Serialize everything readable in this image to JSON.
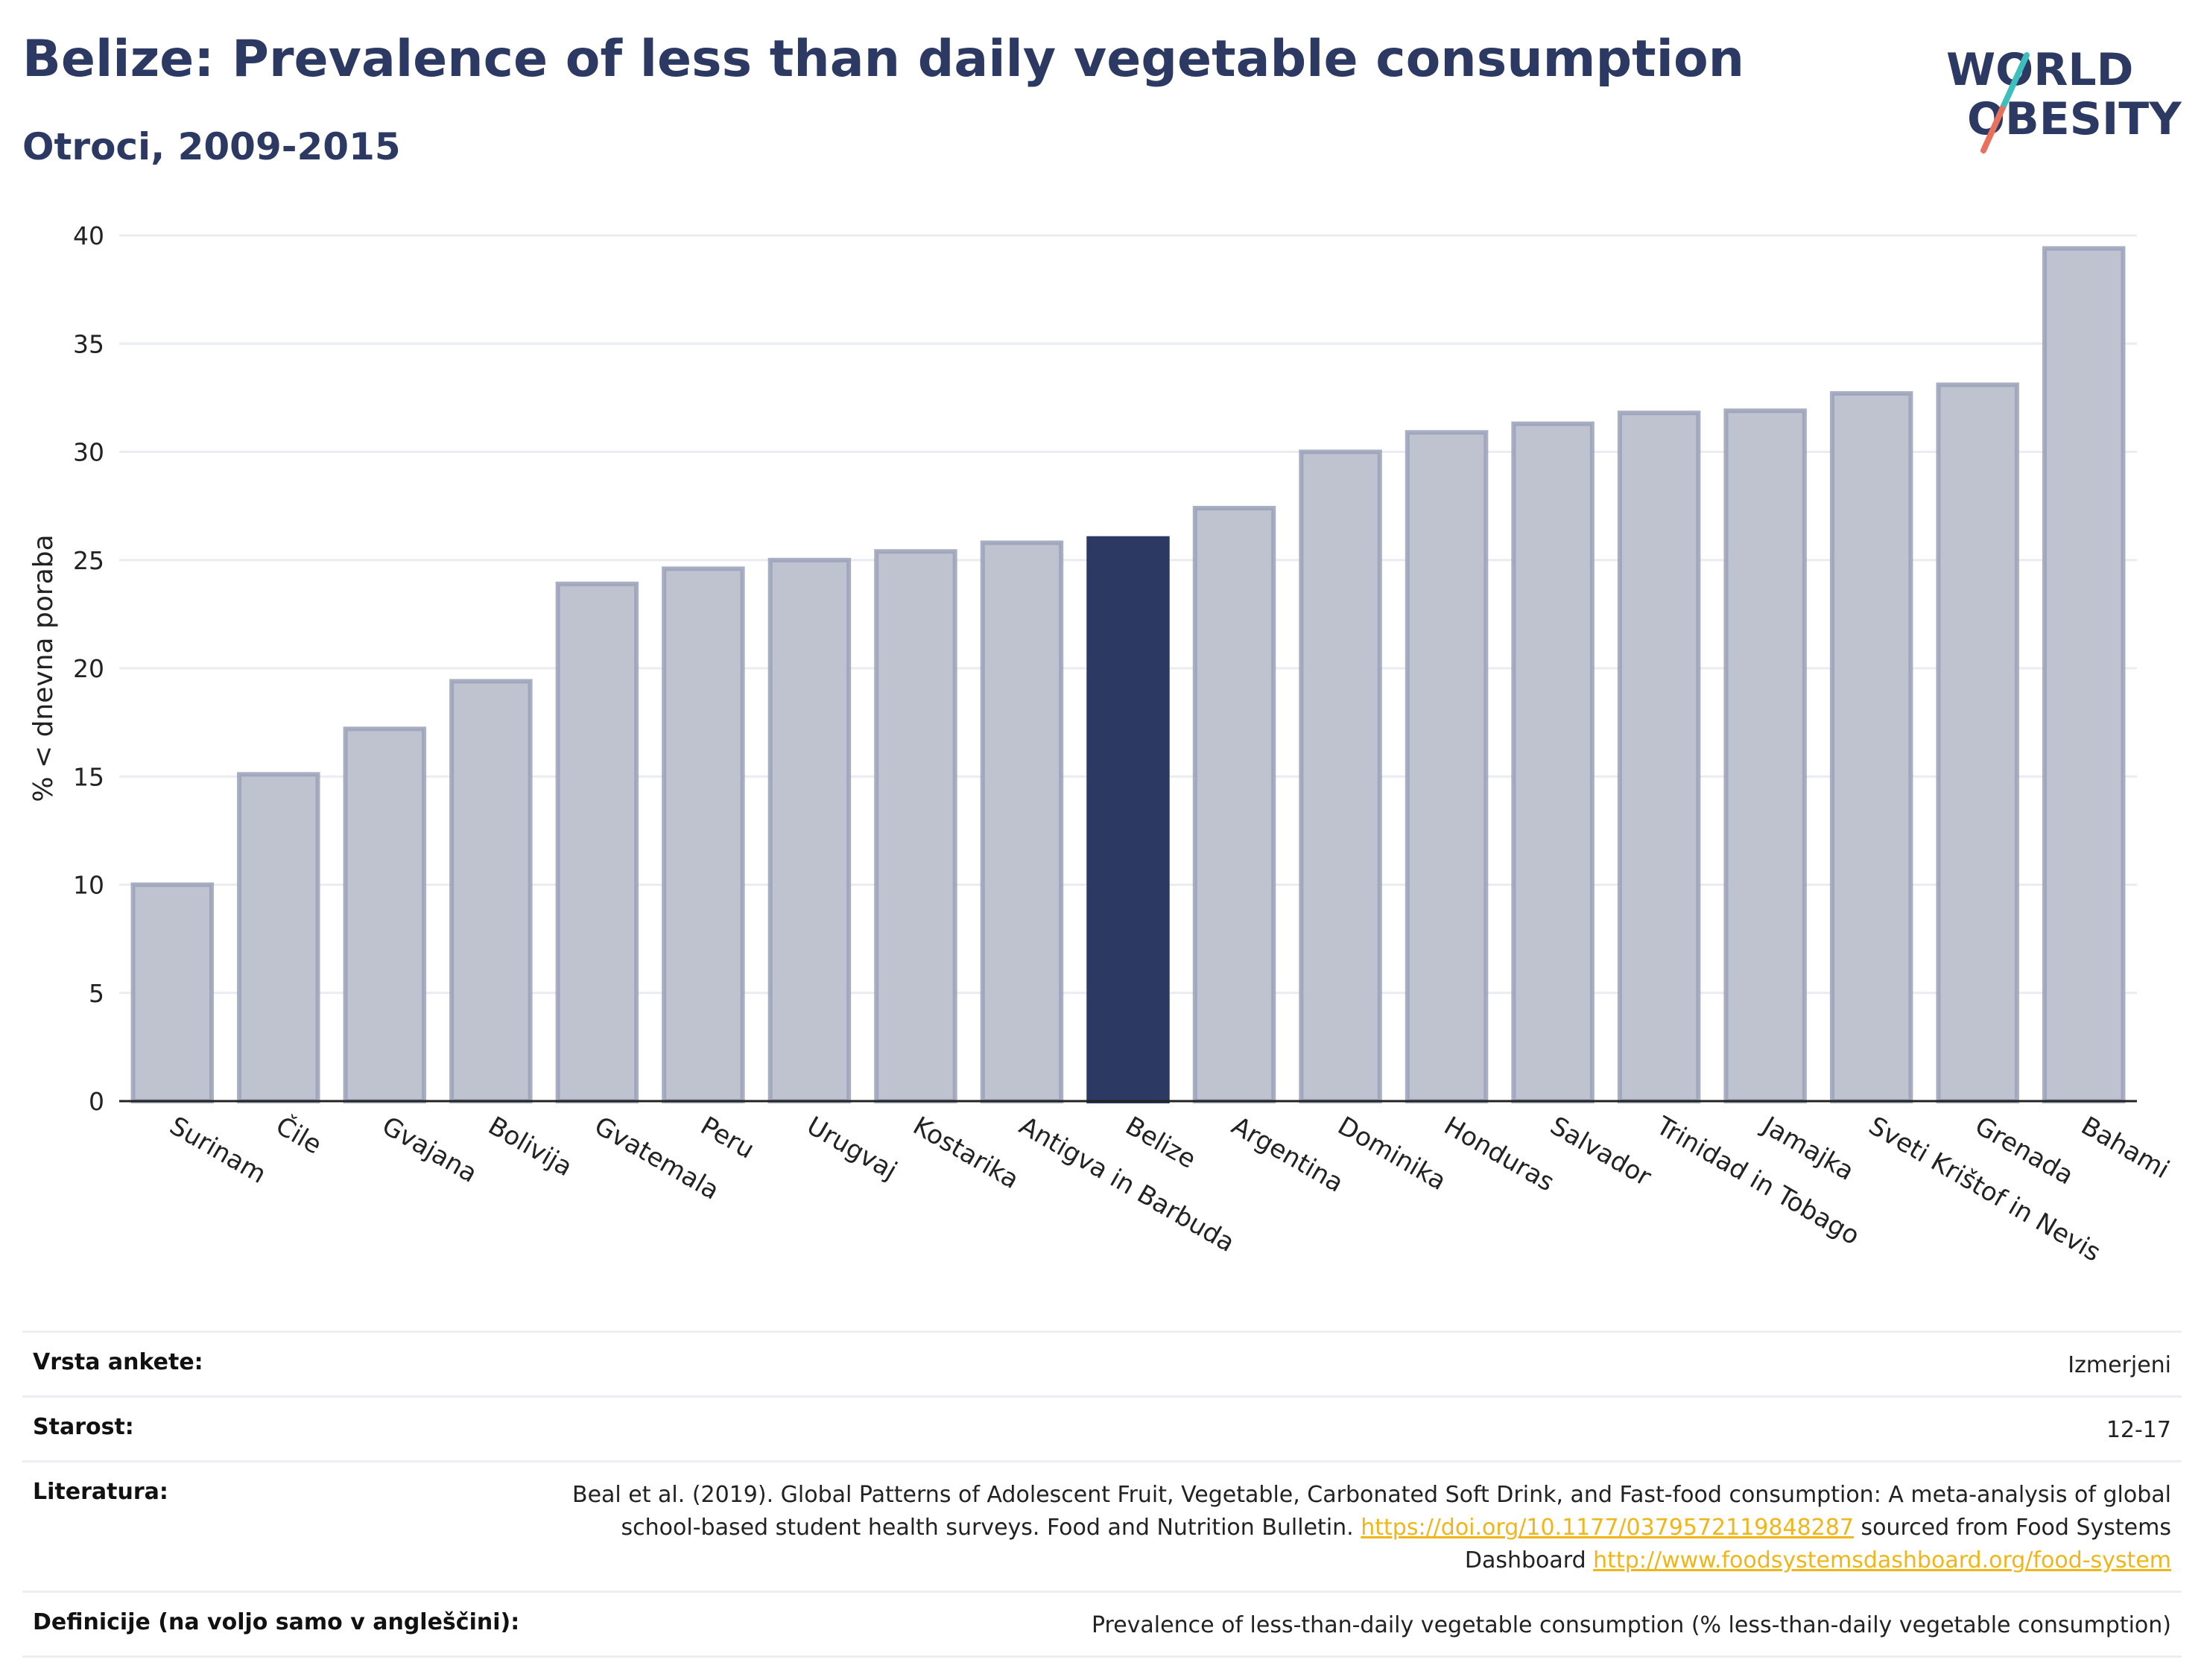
{
  "header": {
    "title": "Belize: Prevalence of less than daily vegetable consumption",
    "subtitle": "Otroci, 2009-2015"
  },
  "logo": {
    "line1": "WORLD",
    "line2": "OBESITY"
  },
  "colors": {
    "bar": "#bfc3d0",
    "bar_border": "#9aa1b8",
    "highlight": "#2c3963",
    "title": "#2c3963",
    "link": "#f0b619"
  },
  "chart_data": {
    "type": "bar",
    "title": "Belize: Prevalence of less than daily vegetable consumption",
    "subtitle": "Otroci, 2009-2015",
    "xlabel": "",
    "ylabel": "% < dnevna poraba",
    "ylim": [
      0,
      40
    ],
    "yticks": [
      0,
      5,
      10,
      15,
      20,
      25,
      30,
      35,
      40
    ],
    "grid": true,
    "highlight": "Belize",
    "categories": [
      "Surinam",
      "Čile",
      "Gvajana",
      "Bolivija",
      "Gvatemala",
      "Peru",
      "Urugvaj",
      "Kostarika",
      "Antigva in Barbuda",
      "Belize",
      "Argentina",
      "Dominika",
      "Honduras",
      "Salvador",
      "Trinidad in Tobago",
      "Jamajka",
      "Sveti Krištof in Nevis",
      "Grenada",
      "Bahami"
    ],
    "values": [
      10.0,
      15.1,
      17.2,
      19.4,
      23.9,
      24.6,
      25.0,
      25.4,
      25.8,
      26.0,
      27.4,
      30.0,
      30.9,
      31.3,
      31.8,
      31.9,
      32.7,
      33.1,
      39.4
    ]
  },
  "meta": {
    "survey_label": "Vrsta ankete:",
    "survey_value": "Izmerjeni",
    "age_label": "Starost:",
    "age_value": "12-17",
    "ref_label": "Literatura:",
    "ref_text1": "Beal et al. (2019). Global Patterns of Adolescent Fruit, Vegetable, Carbonated Soft Drink, and Fast-food consumption: A meta-analysis of global school-based student health surveys. Food and Nutrition Bulletin. ",
    "ref_link1": "https://doi.org/10.1177/0379572119848287",
    "ref_text2": " sourced from Food Systems Dashboard ",
    "ref_link2": "http://www.foodsystemsdashboard.org/food-system",
    "def_label": "Definicije (na voljo samo v angleščini):",
    "def_value": "Prevalence of less-than-daily vegetable consumption (% less-than-daily vegetable consumption)"
  }
}
